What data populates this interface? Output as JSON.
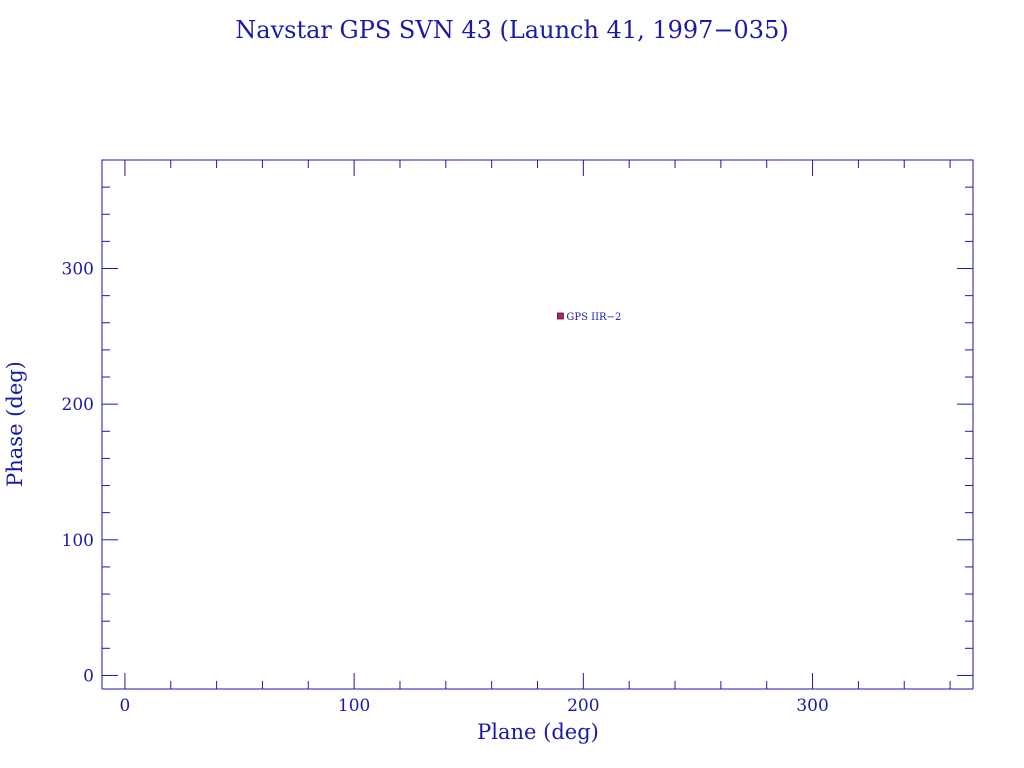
{
  "chart_data": {
    "type": "scatter",
    "title": "Navstar GPS SVN 43 (Launch 41, 1997−035)",
    "xlabel": "Plane (deg)",
    "ylabel": "Phase (deg)",
    "xlim": [
      -10,
      370
    ],
    "ylim": [
      -10,
      380
    ],
    "x_major_ticks": [
      0,
      100,
      200,
      300
    ],
    "y_major_ticks": [
      0,
      100,
      200,
      300
    ],
    "x_tick_labels": [
      "0",
      "100",
      "200",
      "300"
    ],
    "y_tick_labels": [
      "0",
      "100",
      "200",
      "300"
    ],
    "x_minor_step": 20,
    "y_minor_step": 20,
    "grid": false,
    "series": [
      {
        "points": [
          {
            "x": 190,
            "y": 265,
            "label": "GPS IIR−2"
          }
        ]
      }
    ],
    "colors": {
      "axis": "#1a1aa6",
      "text": "#1a1aa6",
      "marker": "#cc2222"
    }
  }
}
